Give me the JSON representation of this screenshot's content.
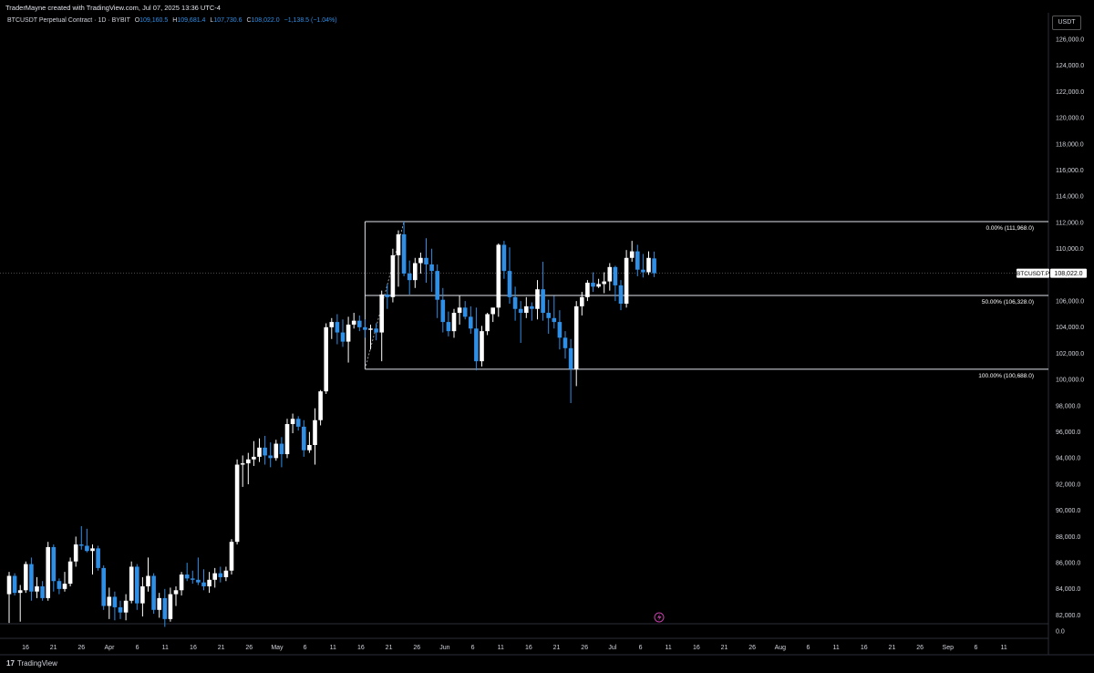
{
  "header": {
    "caption": "TraderMayne created with TradingView.com, Jul 07, 2025 13:36 UTC-4",
    "symbol": "BTCUSDT Perpetual Contract · 1D · BYBIT",
    "open_label": "O",
    "open": "109,160.5",
    "high_label": "H",
    "high": "109,681.4",
    "low_label": "L",
    "low": "107,730.6",
    "close_label": "C",
    "close": "108,022.0",
    "change": "−1,138.5 (−1.04%)"
  },
  "price_axis": {
    "unit": "USDT",
    "ticks": [
      "126,000.0",
      "124,000.0",
      "122,000.0",
      "120,000.0",
      "118,000.0",
      "116,000.0",
      "114,000.0",
      "112,000.0",
      "110,000.0",
      "108,000.0",
      "106,000.0",
      "104,000.0",
      "102,000.0",
      "100,000.0",
      "98,000.0",
      "96,000.0",
      "94,000.0",
      "92,000.0",
      "90,000.0",
      "88,000.0",
      "86,000.0",
      "84,000.0",
      "82,000.0",
      "0.0"
    ]
  },
  "time_axis": {
    "ticks": [
      "16",
      "21",
      "26",
      "Apr",
      "6",
      "11",
      "16",
      "21",
      "26",
      "May",
      "6",
      "11",
      "16",
      "21",
      "26",
      "Jun",
      "6",
      "11",
      "16",
      "21",
      "26",
      "Jul",
      "6",
      "11",
      "16",
      "21",
      "26",
      "Aug",
      "6",
      "11",
      "16",
      "21",
      "26",
      "Sep",
      "6",
      "11"
    ]
  },
  "fib_levels": [
    {
      "label": "0.00% (111,968.0)",
      "price": 111968
    },
    {
      "label": "50.00% (106,328.0)",
      "price": 106328
    },
    {
      "label": "100.00% (100,688.0)",
      "price": 100688
    }
  ],
  "current_price": {
    "symbol": "BTCUSDT.P",
    "value": "108,022.0",
    "price": 108022
  },
  "footer": {
    "brand": "TradingView",
    "logo_mark": "17"
  },
  "colors": {
    "up": "#ffffff",
    "down": "#2f8fe6",
    "background": "#000000",
    "accent_icon": "#c23fa8"
  },
  "chart_data": {
    "type": "candlestick",
    "title": "BTCUSDT Perpetual Contract · 1D · BYBIT",
    "ylabel": "USDT",
    "ylim": [
      81400,
      127000
    ],
    "grid": false,
    "candles": [
      [
        83500,
        85200,
        81300,
        84900
      ],
      [
        84900,
        85100,
        83400,
        83600
      ],
      [
        83600,
        84200,
        81400,
        83800
      ],
      [
        83800,
        86000,
        83600,
        85800
      ],
      [
        85800,
        86300,
        83000,
        83700
      ],
      [
        83700,
        84800,
        83200,
        84100
      ],
      [
        84100,
        84500,
        83000,
        83200
      ],
      [
        83200,
        87500,
        83000,
        87100
      ],
      [
        87100,
        87300,
        83700,
        84500
      ],
      [
        84500,
        84700,
        83500,
        83900
      ],
      [
        83900,
        85200,
        83700,
        84300
      ],
      [
        84300,
        86300,
        84100,
        86000
      ],
      [
        86000,
        87900,
        85600,
        87300
      ],
      [
        87300,
        88700,
        86900,
        87200
      ],
      [
        87200,
        88500,
        86700,
        86800
      ],
      [
        86800,
        87300,
        85000,
        87000
      ],
      [
        87000,
        87200,
        85300,
        85500
      ],
      [
        85500,
        85700,
        82300,
        82600
      ],
      [
        82600,
        84000,
        81600,
        83300
      ],
      [
        83300,
        83700,
        81500,
        82500
      ],
      [
        82500,
        83000,
        81600,
        82100
      ],
      [
        82100,
        83500,
        81500,
        83000
      ],
      [
        83000,
        86000,
        82800,
        85600
      ],
      [
        85600,
        85800,
        82300,
        82800
      ],
      [
        82800,
        84800,
        81800,
        84100
      ],
      [
        84100,
        86300,
        83700,
        84900
      ],
      [
        84900,
        85100,
        82000,
        82300
      ],
      [
        82300,
        83600,
        81700,
        83200
      ],
      [
        83200,
        83900,
        81000,
        81600
      ],
      [
        81600,
        84000,
        81400,
        83500
      ],
      [
        83500,
        84100,
        82600,
        83800
      ],
      [
        83800,
        85200,
        83400,
        85000
      ],
      [
        85000,
        85900,
        84500,
        84700
      ],
      [
        84700,
        85300,
        84300,
        84600
      ],
      [
        84600,
        86300,
        84200,
        84400
      ],
      [
        84400,
        85400,
        83800,
        84100
      ],
      [
        84100,
        85200,
        83600,
        84600
      ],
      [
        84600,
        85500,
        84000,
        85100
      ],
      [
        85100,
        85600,
        84400,
        84800
      ],
      [
        84800,
        85600,
        84500,
        85300
      ],
      [
        85300,
        87700,
        85000,
        87500
      ],
      [
        87500,
        93800,
        87300,
        93400
      ],
      [
        93400,
        94100,
        91700,
        93500
      ],
      [
        93500,
        94300,
        91900,
        93800
      ],
      [
        93800,
        95200,
        93300,
        94000
      ],
      [
        94000,
        95400,
        93600,
        94700
      ],
      [
        94700,
        95600,
        93400,
        94100
      ],
      [
        94100,
        95100,
        93200,
        93900
      ],
      [
        93900,
        95300,
        93700,
        95000
      ],
      [
        95000,
        95500,
        93200,
        94200
      ],
      [
        94200,
        96900,
        93900,
        96500
      ],
      [
        96500,
        97300,
        95800,
        96900
      ],
      [
        96900,
        97100,
        96000,
        96300
      ],
      [
        96300,
        96800,
        94000,
        94500
      ],
      [
        94500,
        95900,
        94300,
        94900
      ],
      [
        94900,
        97700,
        93400,
        96800
      ],
      [
        96800,
        99100,
        96400,
        99000
      ],
      [
        99000,
        104200,
        98800,
        103900
      ],
      [
        103900,
        104600,
        103000,
        104300
      ],
      [
        104300,
        104900,
        102600,
        103500
      ],
      [
        103500,
        104500,
        102400,
        102800
      ],
      [
        102800,
        104700,
        101200,
        104100
      ],
      [
        104100,
        105000,
        103800,
        104400
      ],
      [
        104400,
        104800,
        103600,
        103900
      ],
      [
        103900,
        104500,
        103100,
        103700
      ],
      [
        103700,
        104100,
        102200,
        103800
      ],
      [
        103800,
        104200,
        102900,
        103500
      ],
      [
        103500,
        106700,
        101300,
        106400
      ],
      [
        106400,
        107200,
        105300,
        106200
      ],
      [
        106200,
        109900,
        105800,
        109400
      ],
      [
        109400,
        111300,
        107000,
        111000
      ],
      [
        111000,
        111968,
        107800,
        108000
      ],
      [
        108000,
        109000,
        106400,
        107500
      ],
      [
        107500,
        109200,
        106900,
        108800
      ],
      [
        108800,
        109600,
        108000,
        109200
      ],
      [
        109200,
        110700,
        107300,
        108700
      ],
      [
        108700,
        109900,
        106600,
        108200
      ],
      [
        108200,
        108700,
        104600,
        106000
      ],
      [
        106000,
        106900,
        103500,
        104300
      ],
      [
        104300,
        105100,
        103200,
        103600
      ],
      [
        103600,
        105300,
        103100,
        105000
      ],
      [
        105000,
        106300,
        104100,
        105400
      ],
      [
        105400,
        105900,
        104500,
        104700
      ],
      [
        104700,
        105500,
        103400,
        103800
      ],
      [
        103800,
        105400,
        100600,
        101300
      ],
      [
        101300,
        104000,
        100900,
        103600
      ],
      [
        103600,
        105000,
        103300,
        104900
      ],
      [
        104900,
        105300,
        104300,
        105400
      ],
      [
        105400,
        110300,
        104700,
        110200
      ],
      [
        110200,
        110500,
        107600,
        108200
      ],
      [
        108200,
        110000,
        105700,
        106200
      ],
      [
        106200,
        107000,
        104400,
        105300
      ],
      [
        105300,
        105900,
        102700,
        105000
      ],
      [
        105000,
        106200,
        104600,
        105500
      ],
      [
        105500,
        105800,
        104400,
        105300
      ],
      [
        105300,
        107500,
        104500,
        106800
      ],
      [
        106800,
        108900,
        104400,
        105000
      ],
      [
        105000,
        106000,
        103400,
        104600
      ],
      [
        104600,
        106300,
        103800,
        104300
      ],
      [
        104300,
        105200,
        102200,
        103100
      ],
      [
        103100,
        103600,
        101500,
        102300
      ],
      [
        102300,
        103000,
        98100,
        100700
      ],
      [
        100700,
        105900,
        99400,
        105500
      ],
      [
        105500,
        106600,
        104800,
        106200
      ],
      [
        106200,
        107500,
        105900,
        107300
      ],
      [
        107300,
        108100,
        106600,
        107000
      ],
      [
        107000,
        107600,
        106900,
        107200
      ],
      [
        107200,
        108100,
        106500,
        107400
      ],
      [
        107400,
        108800,
        106700,
        108500
      ],
      [
        108500,
        108600,
        105900,
        107100
      ],
      [
        107100,
        107500,
        105200,
        105700
      ],
      [
        105700,
        109800,
        105400,
        109200
      ],
      [
        109200,
        110500,
        108900,
        109700
      ],
      [
        109700,
        110200,
        107800,
        108300
      ],
      [
        108300,
        109500,
        107700,
        108100
      ],
      [
        108100,
        109700,
        107900,
        109200
      ],
      [
        109160.5,
        109681.4,
        107730.6,
        108022.0
      ]
    ]
  }
}
